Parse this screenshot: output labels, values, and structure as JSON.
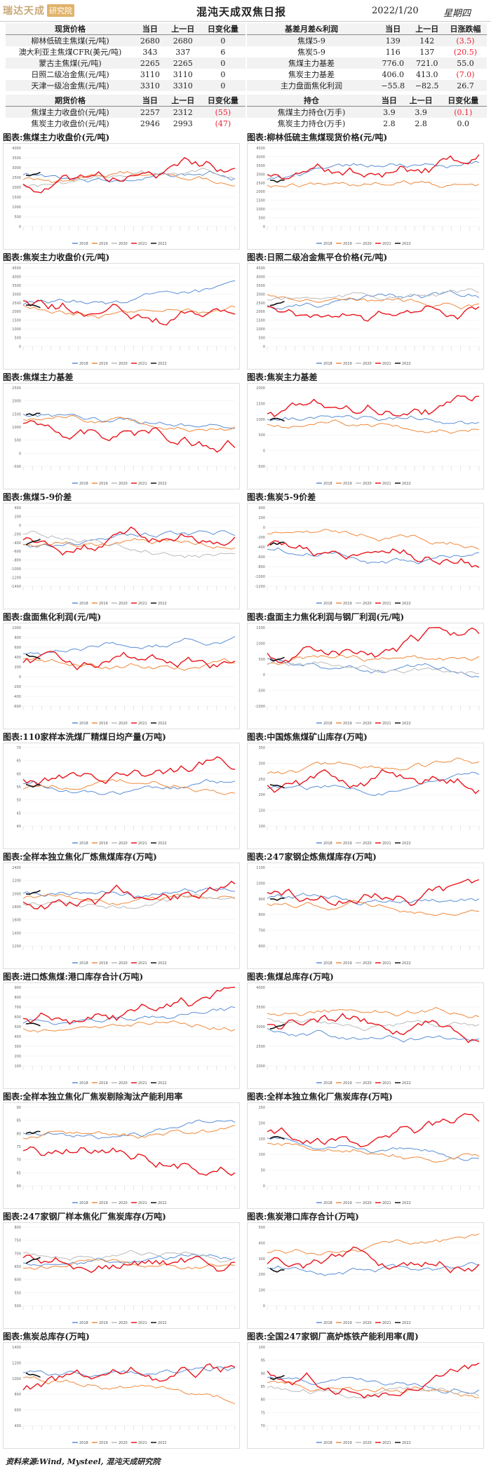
{
  "header": {
    "logo_text": "瑞达天成",
    "logo_seal": "研究院",
    "title": "混沌天成双焦日报",
    "date": "2022/1/20",
    "weekday": "星期四"
  },
  "spot_table": {
    "headers": [
      "现货价格",
      "当日",
      "上一日",
      "日变化量"
    ],
    "rows": [
      {
        "name": "柳林低硫主焦煤(元/吨)",
        "today": "2680",
        "prev": "2680",
        "change": "0"
      },
      {
        "name": "澳大利亚主焦煤CFR(美元/吨)",
        "today": "343",
        "prev": "337",
        "change": "6"
      },
      {
        "name": "蒙古主焦煤(元/吨)",
        "today": "2265",
        "prev": "2265",
        "change": "0"
      },
      {
        "name": "日照二级冶金焦(元/吨)",
        "today": "3110",
        "prev": "3110",
        "change": "0"
      },
      {
        "name": "天津一级冶金焦(元/吨)",
        "today": "3310",
        "prev": "3310",
        "change": "0"
      }
    ]
  },
  "basis_table": {
    "headers": [
      "基差月差&利润",
      "当日",
      "上一日",
      "日涨跌幅"
    ],
    "rows": [
      {
        "name": "焦煤5-9",
        "today": "139",
        "prev": "142",
        "change": "(3.5)"
      },
      {
        "name": "焦炭5-9",
        "today": "116",
        "prev": "137",
        "change": "(20.5)"
      },
      {
        "name": "焦煤主力基差",
        "today": "776.0",
        "prev": "721.0",
        "change": "55.0"
      },
      {
        "name": "焦炭主力基差",
        "today": "406.0",
        "prev": "413.0",
        "change": "(7.0)"
      },
      {
        "name": "主力盘面焦化利润",
        "today": "−55.8",
        "prev": "−82.5",
        "change": "26.7"
      }
    ]
  },
  "futures_table": {
    "headers": [
      "期货价格",
      "当日",
      "上一日",
      "日变化量"
    ],
    "rows": [
      {
        "name": "焦煤主力收盘价(元/吨)",
        "today": "2257",
        "prev": "2312",
        "change": "(55)"
      },
      {
        "name": "焦炭主力收盘价(元/吨)",
        "today": "2946",
        "prev": "2993",
        "change": "(47)"
      }
    ]
  },
  "position_table": {
    "headers": [
      "持仓",
      "当日",
      "上一日",
      "日变化量"
    ],
    "rows": [
      {
        "name": "焦煤主力持仓(万手)",
        "today": "3.9",
        "prev": "3.9",
        "change": "(0.1)"
      },
      {
        "name": "焦炭主力持仓(万手)",
        "today": "2.8",
        "prev": "2.8",
        "change": "0.0"
      }
    ]
  },
  "colors": {
    "y2018": "#5b8fd6",
    "y2019": "#f08a3c",
    "y2020": "#bbbbbb",
    "y2021": "#e8141c",
    "y2022": "#111111"
  },
  "legend_labels": [
    "2018",
    "2019",
    "2020",
    "2021",
    "2022"
  ],
  "charts": [
    {
      "title": "图表:焦煤主力收盘价(元/吨)",
      "yticks": [
        "4000",
        "3500",
        "3000",
        "2500",
        "2000",
        "1500",
        "1000",
        "500",
        "0"
      ]
    },
    {
      "title": "图表:柳林低硫主焦煤现货价格(元/吨)",
      "yticks": [
        "4500",
        "4000",
        "3500",
        "3000",
        "2500",
        "2000",
        "1500",
        "1000",
        "500",
        "0"
      ]
    },
    {
      "title": "图表:焦炭主力收盘价(元/吨)",
      "yticks": [
        "4500",
        "4000",
        "3500",
        "3000",
        "2500",
        "2000",
        "1500",
        "1000",
        "500",
        "0"
      ]
    },
    {
      "title": "图表:日照二级冶金焦平仓价格(元/吨)",
      "yticks": [
        "4500",
        "4000",
        "3500",
        "3000",
        "2500",
        "2000",
        "1500",
        "1000",
        "500",
        "0"
      ]
    },
    {
      "title": "图表:焦煤主力基差",
      "yticks": [
        "2500",
        "2000",
        "1500",
        "1000",
        "500",
        "0",
        "-500"
      ]
    },
    {
      "title": "图表:焦炭主力基差",
      "yticks": [
        "2000",
        "1500",
        "1000",
        "500",
        "0",
        "-500"
      ]
    },
    {
      "title": "图表:焦煤5-9价差",
      "yticks": [
        "400",
        "200",
        "0",
        "-200",
        "-400",
        "-600",
        "-800",
        "-1000",
        "-1200",
        "-1400"
      ]
    },
    {
      "title": "图表:焦炭5-9价差",
      "yticks": [
        "400",
        "200",
        "0",
        "-200",
        "-400",
        "-600",
        "-800",
        "-1000",
        "-1200"
      ]
    },
    {
      "title": "图表:盘面焦化利润(元/吨)",
      "yticks": [
        "1000",
        "800",
        "600",
        "400",
        "200",
        "0",
        "-200",
        "-400",
        "-600"
      ]
    },
    {
      "title": "图表:盘面主力焦化利润与钢厂利润(元/吨)",
      "yticks": [
        "1500",
        "1000",
        "500",
        "0",
        "-500",
        "-1000"
      ]
    },
    {
      "title": "图表:110家样本洗煤厂精煤日均产量(万吨)",
      "yticks": [
        "70",
        "65",
        "60",
        "55",
        "50",
        "45",
        "40"
      ]
    },
    {
      "title": "图表:中国炼焦煤矿山库存(万吨)",
      "yticks": [
        "350",
        "300",
        "250",
        "200",
        "150",
        "100"
      ]
    },
    {
      "title": "图表:全样本独立焦化厂炼焦煤库存(万吨)",
      "yticks": [
        "2400",
        "2200",
        "2000",
        "1800",
        "1600",
        "1400",
        "1200"
      ]
    },
    {
      "title": "图表:247家钢企炼焦煤库存(万吨)",
      "yticks": [
        "1100",
        "1000",
        "900",
        "800",
        "700",
        "600"
      ]
    },
    {
      "title": "图表:进口炼焦煤:港口库存合计(万吨)",
      "yticks": [
        "900",
        "800",
        "700",
        "600",
        "500",
        "400",
        "300",
        "200",
        "100"
      ]
    },
    {
      "title": "图表:焦煤总库存(万吨)",
      "yticks": [
        "4000",
        "3500",
        "3000",
        "2500",
        "2000"
      ]
    },
    {
      "title": "图表:全样本独立焦化厂焦炭剔除淘汰产能利用率",
      "yticks": [
        "90",
        "85",
        "80",
        "75",
        "70",
        "65",
        "60"
      ]
    },
    {
      "title": "图表:全样本独立焦化厂焦炭库存(万吨)",
      "yticks": [
        "250",
        "200",
        "150",
        "100",
        "50",
        "0"
      ]
    },
    {
      "title": "图表:247家钢厂样本焦化厂焦炭库存(万吨)",
      "yticks": [
        "800",
        "750",
        "700",
        "650",
        "600",
        "550",
        "500"
      ]
    },
    {
      "title": "图表:焦炭港口库存合计(万吨)",
      "yticks": [
        "500",
        "400",
        "300",
        "200",
        "100",
        "0"
      ]
    },
    {
      "title": "图表:焦炭总库存(万吨)",
      "yticks": [
        "1400",
        "1200",
        "1000",
        "800",
        "600",
        "400"
      ]
    },
    {
      "title": "图表:全国247家钢厂高炉炼铁产能利用率(周)",
      "yticks": [
        "100",
        "95",
        "90",
        "85",
        "80",
        "75",
        "70"
      ]
    }
  ],
  "footer": "资料来源:Wind, Mysteel, 混沌天成研究院"
}
